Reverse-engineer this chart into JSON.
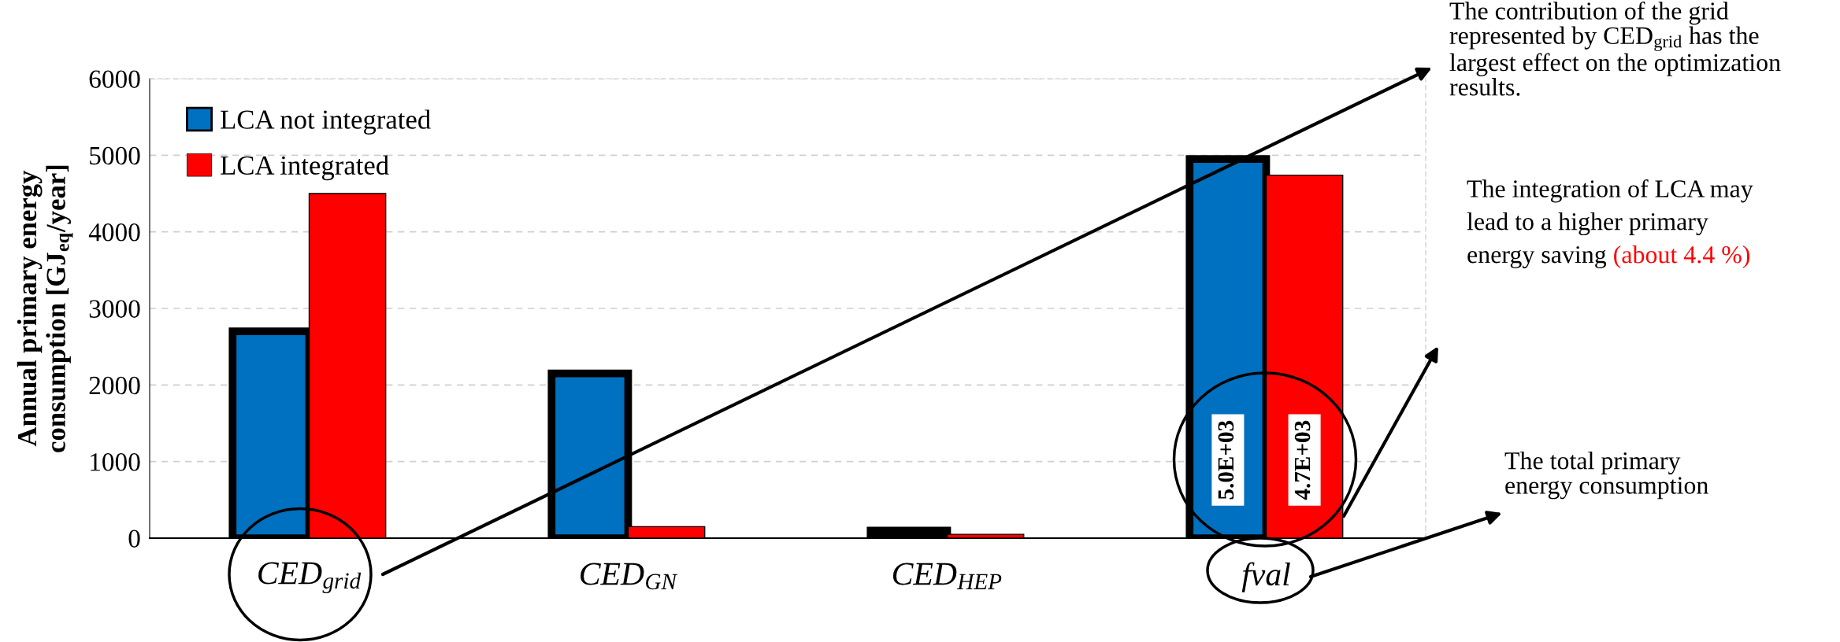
{
  "chart_data": {
    "type": "bar",
    "ylabel": "Annual primary energy\nconsumption [GJ$_{eq}$/year]",
    "categories": [
      "CED$_{grid}$",
      "CED$_{GN}$",
      "CED$_{HEP}$",
      "fval"
    ],
    "series": [
      {
        "name": "LCA not integrated",
        "color": "#0070c0",
        "values": [
          2700,
          2150,
          100,
          4950
        ],
        "value_labels": [
          null,
          null,
          null,
          "5.0E+03"
        ]
      },
      {
        "name": "LCA integrated",
        "color": "#ff0000",
        "values": [
          4500,
          150,
          50,
          4740
        ],
        "value_labels": [
          null,
          null,
          null,
          "4.7E+03"
        ]
      }
    ],
    "ylim": [
      0,
      6000
    ],
    "yticks": [
      0,
      1000,
      2000,
      3000,
      4000,
      5000,
      6000
    ],
    "grid": "y",
    "legend": "top left",
    "annotations": [
      "The contribution of the grid\nrepresented by CED$_{grid}$ has the\nlargest effect on the optimization\nresults.",
      "The integration of LCA may\nlead to a higher primary\nenergy saving",
      "(about 4.4 %)",
      "The total primary\nenergy consumption"
    ]
  }
}
